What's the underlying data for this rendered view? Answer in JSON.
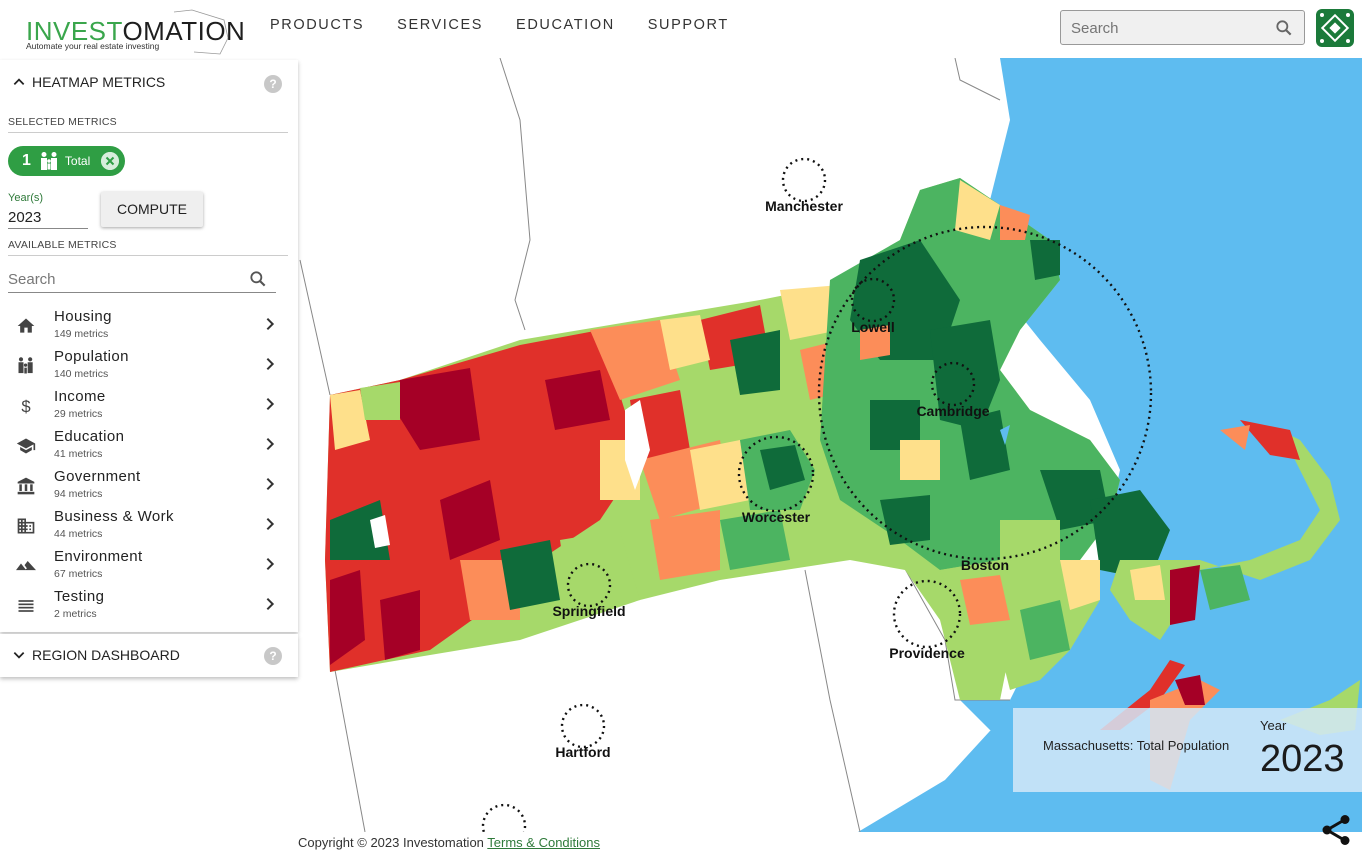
{
  "header": {
    "logo_green": "INVEST",
    "logo_dark": "OMATION",
    "logo_tagline": "Automate your real estate investing",
    "nav": [
      "PRODUCTS",
      "SERVICES",
      "EDUCATION",
      "SUPPORT"
    ],
    "search_placeholder": "Search"
  },
  "sidebar": {
    "heatmap_title": "HEATMAP METRICS",
    "selected_label": "SELECTED METRICS",
    "chip": {
      "number": "1",
      "label": "Total"
    },
    "year_label": "Year(s)",
    "year_value": "2023",
    "compute_label": "COMPUTE",
    "available_label": "AVAILABLE METRICS",
    "search_placeholder": "Search",
    "categories": [
      {
        "name": "Housing",
        "count": "149 metrics",
        "icon": "home-icon"
      },
      {
        "name": "Population",
        "count": "140 metrics",
        "icon": "people-icon"
      },
      {
        "name": "Income",
        "count": "29 metrics",
        "icon": "dollar-icon"
      },
      {
        "name": "Education",
        "count": "41 metrics",
        "icon": "school-icon"
      },
      {
        "name": "Government",
        "count": "94 metrics",
        "icon": "government-icon"
      },
      {
        "name": "Business & Work",
        "count": "44 metrics",
        "icon": "business-icon"
      },
      {
        "name": "Environment",
        "count": "67 metrics",
        "icon": "terrain-icon"
      },
      {
        "name": "Testing",
        "count": "2 metrics",
        "icon": "list-icon"
      }
    ],
    "region_title": "REGION DASHBOARD"
  },
  "map": {
    "cities": [
      "Manchester",
      "Lowell",
      "Cambridge",
      "Worcester",
      "Boston",
      "Springfield",
      "Providence",
      "Hartford"
    ],
    "legend_title": "Massachusetts: Total Population",
    "legend_year_label": "Year",
    "legend_year": "2023",
    "colors": {
      "water": "#5ebcf0",
      "dark_green": "#0f6b3a",
      "green": "#4cb461",
      "light_green": "#a6d96a",
      "yellow": "#fee08b",
      "orange": "#fc8d59",
      "red": "#e0302a",
      "dark_red": "#a50026"
    }
  },
  "footer": {
    "copyright": "Copyright © 2023 Investomation",
    "terms": "Terms & Conditions"
  }
}
